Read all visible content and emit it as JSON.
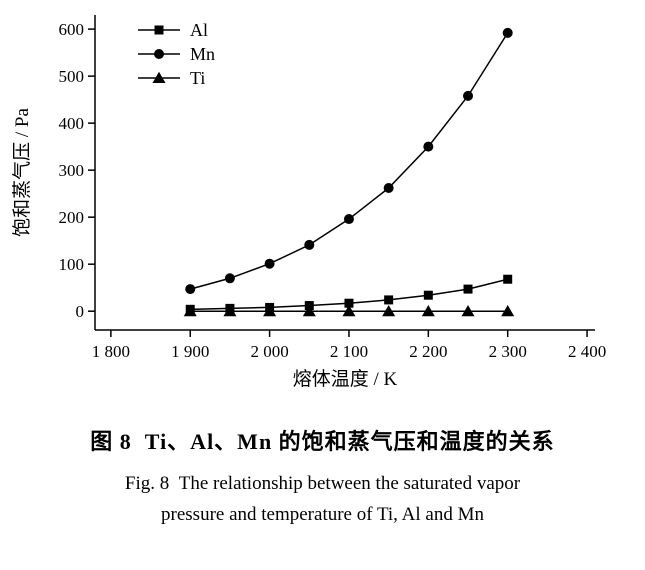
{
  "chart_data": {
    "type": "line",
    "x": [
      1900,
      1950,
      2000,
      2050,
      2100,
      2150,
      2200,
      2250,
      2300
    ],
    "series": [
      {
        "name": "Al",
        "marker": "square",
        "values": [
          4,
          6,
          8,
          12,
          17,
          24,
          34,
          47,
          68
        ]
      },
      {
        "name": "Mn",
        "marker": "circle",
        "values": [
          47,
          70,
          101,
          141,
          196,
          262,
          350,
          458,
          592
        ]
      },
      {
        "name": "Ti",
        "marker": "triangle",
        "values": [
          0,
          0,
          0,
          0,
          0,
          0,
          0,
          0,
          0
        ]
      }
    ],
    "xlabel": "熔体温度 / K",
    "ylabel": "饱和蒸气压 / Pa",
    "xlim": [
      1780,
      2410
    ],
    "ylim": [
      -40,
      630
    ],
    "xticks": {
      "values": [
        1800,
        1900,
        2000,
        2100,
        2200,
        2300,
        2400
      ],
      "labels": [
        "1 800",
        "1 900",
        "2 000",
        "2 100",
        "2 200",
        "2 300",
        "2 400"
      ]
    },
    "yticks": {
      "values": [
        0,
        100,
        200,
        300,
        400,
        500,
        600
      ],
      "labels": [
        "0",
        "100",
        "200",
        "300",
        "400",
        "500",
        "600"
      ]
    },
    "legend_position": "top-left",
    "grid": false,
    "line_color": "#000000"
  },
  "caption": {
    "zh": "图 8  Ti、Al、Mn 的饱和蒸气压和温度的关系",
    "en_line1": "Fig. 8  The relationship between the saturated vapor",
    "en_line2": "pressure and temperature of Ti, Al and Mn"
  }
}
